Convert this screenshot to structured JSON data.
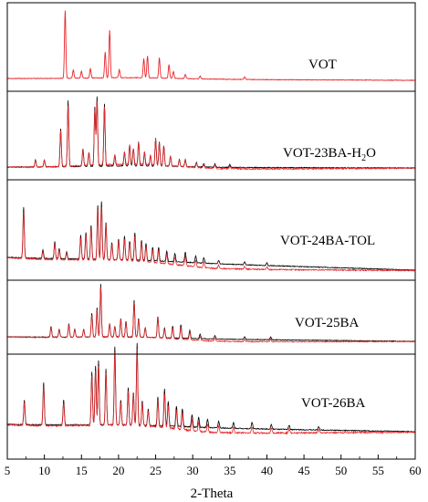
{
  "chart_data": {
    "type": "line",
    "xlabel": "2-Theta",
    "xlim": [
      5,
      60
    ],
    "xticks": [
      5,
      10,
      15,
      20,
      25,
      30,
      35,
      40,
      45,
      50,
      55,
      60
    ],
    "grid": false,
    "colors": {
      "calculated": "#e8262a",
      "experimental": "#000000"
    },
    "panels": [
      {
        "label_main": "VOT",
        "label_sub": "",
        "label_tail": "",
        "experimental": false,
        "peaks": [
          [
            12.8,
            1.0
          ],
          [
            13.9,
            0.12
          ],
          [
            15.0,
            0.1
          ],
          [
            16.2,
            0.14
          ],
          [
            18.2,
            0.38
          ],
          [
            18.8,
            0.7
          ],
          [
            20.1,
            0.12
          ],
          [
            23.4,
            0.28
          ],
          [
            23.9,
            0.32
          ],
          [
            25.5,
            0.3
          ],
          [
            26.8,
            0.2
          ],
          [
            27.4,
            0.1
          ],
          [
            29.0,
            0.06
          ],
          [
            31.0,
            0.04
          ],
          [
            37.0,
            0.04
          ]
        ]
      },
      {
        "label_main": "VOT-23BA-H",
        "label_sub": "2",
        "label_tail": "O",
        "experimental": true,
        "peaks": [
          [
            8.8,
            0.1
          ],
          [
            10.0,
            0.1
          ],
          [
            12.2,
            0.55
          ],
          [
            13.2,
            0.95
          ],
          [
            15.2,
            0.25
          ],
          [
            16.0,
            0.2
          ],
          [
            16.8,
            0.85
          ],
          [
            17.1,
            1.0
          ],
          [
            18.1,
            0.9
          ],
          [
            19.5,
            0.15
          ],
          [
            20.8,
            0.2
          ],
          [
            21.5,
            0.3
          ],
          [
            22.0,
            0.25
          ],
          [
            22.7,
            0.35
          ],
          [
            23.5,
            0.2
          ],
          [
            24.3,
            0.15
          ],
          [
            25.0,
            0.4
          ],
          [
            25.5,
            0.35
          ],
          [
            26.1,
            0.3
          ],
          [
            27.0,
            0.15
          ],
          [
            28.2,
            0.1
          ],
          [
            29.0,
            0.1
          ],
          [
            30.5,
            0.06
          ],
          [
            31.5,
            0.05
          ],
          [
            33.0,
            0.05
          ],
          [
            35.0,
            0.04
          ]
        ]
      },
      {
        "label_main": "VOT-24BA-TOL",
        "label_sub": "",
        "label_tail": "",
        "experimental": true,
        "peaks": [
          [
            7.2,
            0.75
          ],
          [
            9.8,
            0.12
          ],
          [
            11.4,
            0.25
          ],
          [
            12.0,
            0.15
          ],
          [
            13.0,
            0.1
          ],
          [
            14.9,
            0.35
          ],
          [
            15.6,
            0.4
          ],
          [
            16.3,
            0.5
          ],
          [
            17.2,
            0.8
          ],
          [
            17.7,
            0.85
          ],
          [
            18.3,
            0.55
          ],
          [
            19.1,
            0.25
          ],
          [
            20.0,
            0.3
          ],
          [
            20.8,
            0.35
          ],
          [
            21.5,
            0.28
          ],
          [
            22.2,
            0.4
          ],
          [
            23.1,
            0.3
          ],
          [
            23.7,
            0.25
          ],
          [
            24.6,
            0.2
          ],
          [
            25.4,
            0.2
          ],
          [
            26.5,
            0.15
          ],
          [
            27.6,
            0.12
          ],
          [
            29.0,
            0.15
          ],
          [
            30.4,
            0.1
          ],
          [
            31.5,
            0.08
          ],
          [
            33.5,
            0.05
          ],
          [
            37.0,
            0.04
          ],
          [
            40.0,
            0.04
          ]
        ]
      },
      {
        "label_main": "VOT-25BA",
        "label_sub": "",
        "label_tail": "",
        "experimental": true,
        "peaks": [
          [
            10.9,
            0.2
          ],
          [
            12.0,
            0.15
          ],
          [
            13.3,
            0.25
          ],
          [
            14.1,
            0.15
          ],
          [
            15.3,
            0.15
          ],
          [
            16.4,
            0.45
          ],
          [
            17.1,
            0.55
          ],
          [
            17.6,
            1.0
          ],
          [
            18.8,
            0.25
          ],
          [
            19.5,
            0.2
          ],
          [
            20.3,
            0.35
          ],
          [
            21.0,
            0.3
          ],
          [
            22.1,
            0.7
          ],
          [
            22.7,
            0.35
          ],
          [
            23.6,
            0.18
          ],
          [
            25.3,
            0.4
          ],
          [
            26.2,
            0.18
          ],
          [
            27.3,
            0.22
          ],
          [
            28.4,
            0.25
          ],
          [
            29.6,
            0.15
          ],
          [
            31.0,
            0.08
          ],
          [
            33.0,
            0.06
          ],
          [
            37.0,
            0.05
          ],
          [
            40.5,
            0.05
          ]
        ]
      },
      {
        "label_main": "VOT-26BA",
        "label_sub": "",
        "label_tail": "",
        "experimental": true,
        "peaks": [
          [
            7.3,
            0.3
          ],
          [
            9.9,
            0.52
          ],
          [
            12.6,
            0.3
          ],
          [
            16.4,
            0.65
          ],
          [
            16.9,
            0.72
          ],
          [
            17.3,
            0.78
          ],
          [
            18.3,
            0.68
          ],
          [
            19.5,
            0.95
          ],
          [
            20.3,
            0.3
          ],
          [
            21.3,
            0.45
          ],
          [
            22.0,
            0.4
          ],
          [
            22.5,
            1.0
          ],
          [
            23.2,
            0.3
          ],
          [
            24.0,
            0.2
          ],
          [
            25.3,
            0.35
          ],
          [
            26.2,
            0.45
          ],
          [
            26.7,
            0.3
          ],
          [
            27.8,
            0.25
          ],
          [
            28.6,
            0.22
          ],
          [
            29.9,
            0.15
          ],
          [
            30.8,
            0.12
          ],
          [
            32.0,
            0.1
          ],
          [
            33.5,
            0.08
          ],
          [
            35.5,
            0.07
          ],
          [
            38.0,
            0.08
          ],
          [
            40.6,
            0.06
          ],
          [
            43.0,
            0.05
          ],
          [
            47.0,
            0.04
          ]
        ]
      }
    ]
  }
}
